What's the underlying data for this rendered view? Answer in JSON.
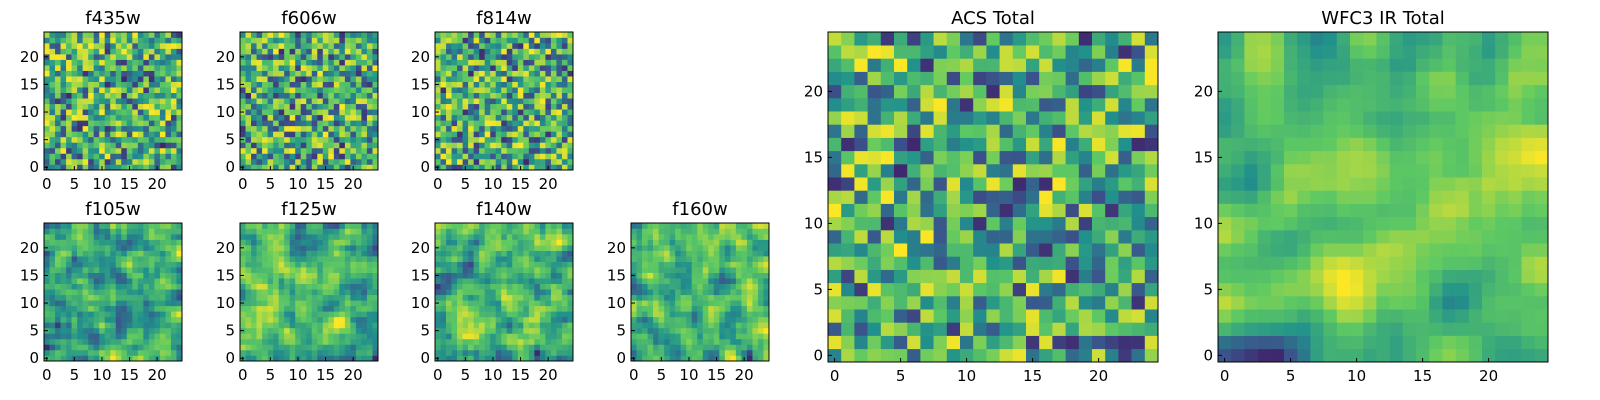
{
  "colormap": [
    "#440154",
    "#3b528b",
    "#21918c",
    "#5ec962",
    "#fde725"
  ],
  "chart_data": [
    {
      "type": "heatmap",
      "title": "f435w",
      "grid_size": 25,
      "seed": 11,
      "smooth": 0,
      "xticks": [
        "0",
        "5",
        "10",
        "15",
        "20"
      ],
      "yticks": [
        "0",
        "5",
        "10",
        "15",
        "20"
      ],
      "xlim": [
        0,
        25
      ],
      "ylim": [
        0,
        25
      ],
      "grid": false
    },
    {
      "type": "heatmap",
      "title": "f606w",
      "grid_size": 25,
      "seed": 23,
      "smooth": 0,
      "xticks": [
        "0",
        "5",
        "10",
        "15",
        "20"
      ],
      "yticks": [
        "0",
        "5",
        "10",
        "15",
        "20"
      ],
      "xlim": [
        0,
        25
      ],
      "ylim": [
        0,
        25
      ],
      "grid": false
    },
    {
      "type": "heatmap",
      "title": "f814w",
      "grid_size": 25,
      "seed": 37,
      "smooth": 0,
      "xticks": [
        "0",
        "5",
        "10",
        "15",
        "20"
      ],
      "yticks": [
        "0",
        "5",
        "10",
        "15",
        "20"
      ],
      "xlim": [
        0,
        25
      ],
      "ylim": [
        0,
        25
      ],
      "grid": false
    },
    {
      "type": "heatmap",
      "title": "f105w",
      "grid_size": 25,
      "seed": 41,
      "smooth": 1,
      "xticks": [
        "0",
        "5",
        "10",
        "15",
        "20"
      ],
      "yticks": [
        "0",
        "5",
        "10",
        "15",
        "20"
      ],
      "xlim": [
        0,
        25
      ],
      "ylim": [
        0,
        25
      ],
      "grid": false
    },
    {
      "type": "heatmap",
      "title": "f125w",
      "grid_size": 25,
      "seed": 53,
      "smooth": 1,
      "xticks": [
        "0",
        "5",
        "10",
        "15",
        "20"
      ],
      "yticks": [
        "0",
        "5",
        "10",
        "15",
        "20"
      ],
      "xlim": [
        0,
        25
      ],
      "ylim": [
        0,
        25
      ],
      "grid": false
    },
    {
      "type": "heatmap",
      "title": "f140w",
      "grid_size": 25,
      "seed": 67,
      "smooth": 1,
      "xticks": [
        "0",
        "5",
        "10",
        "15",
        "20"
      ],
      "yticks": [
        "0",
        "5",
        "10",
        "15",
        "20"
      ],
      "xlim": [
        0,
        25
      ],
      "ylim": [
        0,
        25
      ],
      "grid": false
    },
    {
      "type": "heatmap",
      "title": "f160w",
      "grid_size": 25,
      "seed": 79,
      "smooth": 1,
      "xticks": [
        "0",
        "5",
        "10",
        "15",
        "20"
      ],
      "yticks": [
        "0",
        "5",
        "10",
        "15",
        "20"
      ],
      "xlim": [
        0,
        25
      ],
      "ylim": [
        0,
        25
      ],
      "grid": false
    },
    {
      "type": "heatmap",
      "title": "ACS Total",
      "grid_size": 25,
      "seed": 83,
      "smooth": 0,
      "xticks": [
        "0",
        "5",
        "10",
        "15",
        "20"
      ],
      "yticks": [
        "0",
        "5",
        "10",
        "15",
        "20"
      ],
      "xlim": [
        0,
        25
      ],
      "ylim": [
        0,
        25
      ],
      "grid": false
    },
    {
      "type": "heatmap",
      "title": "WFC3 IR Total",
      "grid_size": 25,
      "seed": 97,
      "smooth": 2,
      "xticks": [
        "0",
        "5",
        "10",
        "15",
        "20"
      ],
      "yticks": [
        "0",
        "5",
        "10",
        "15",
        "20"
      ],
      "xlim": [
        0,
        25
      ],
      "ylim": [
        0,
        25
      ],
      "grid": false
    }
  ]
}
